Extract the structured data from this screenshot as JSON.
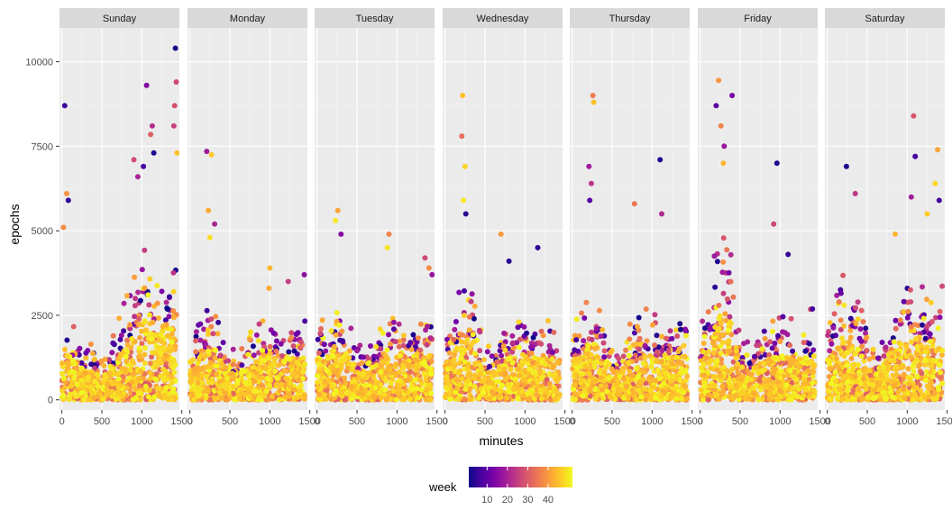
{
  "chart_data": {
    "type": "scatter",
    "facet_by": "day",
    "panels": [
      {
        "label": "Sunday",
        "profile": {
          "minutes": [
            0,
            60,
            120,
            200,
            300,
            400,
            500,
            600,
            700,
            800,
            900,
            1000,
            1100,
            1200,
            1300,
            1440
          ],
          "epochs_q": [
            2200,
            2600,
            2300,
            1900,
            1700,
            1500,
            1300,
            1500,
            2100,
            3000,
            3600,
            4300,
            4600,
            3500,
            4200,
            3600
          ]
        },
        "outliers": [
          [
            35,
            8700
          ],
          [
            60,
            6100
          ],
          [
            80,
            5900
          ],
          [
            20,
            5100
          ],
          [
            1060,
            9300
          ],
          [
            1130,
            8100
          ],
          [
            1110,
            7850
          ],
          [
            1420,
            10400
          ],
          [
            1430,
            9400
          ],
          [
            1410,
            8700
          ],
          [
            1400,
            8100
          ],
          [
            1440,
            7300
          ],
          [
            1150,
            7300
          ],
          [
            900,
            7100
          ],
          [
            950,
            6600
          ],
          [
            1020,
            6900
          ]
        ]
      },
      {
        "label": "Monday",
        "profile": {
          "minutes": [
            0,
            100,
            200,
            300,
            400,
            500,
            600,
            700,
            800,
            900,
            1000,
            1100,
            1200,
            1300,
            1440
          ],
          "epochs_q": [
            2200,
            2300,
            2800,
            2400,
            2000,
            1500,
            1400,
            1700,
            2000,
            2400,
            2500,
            2300,
            2300,
            2400,
            2500
          ]
        },
        "outliers": [
          [
            210,
            7350
          ],
          [
            270,
            7250
          ],
          [
            230,
            5600
          ],
          [
            310,
            5200
          ],
          [
            250,
            4800
          ],
          [
            1000,
            3900
          ],
          [
            1430,
            3700
          ],
          [
            1230,
            3500
          ],
          [
            990,
            3300
          ]
        ]
      },
      {
        "label": "Tuesday",
        "profile": {
          "minutes": [
            0,
            100,
            200,
            300,
            400,
            500,
            600,
            700,
            800,
            900,
            1000,
            1100,
            1200,
            1300,
            1440
          ],
          "epochs_q": [
            2200,
            2300,
            2600,
            2800,
            2300,
            1700,
            1500,
            1800,
            2200,
            2500,
            2500,
            2500,
            2300,
            2300,
            2400
          ]
        },
        "outliers": [
          [
            260,
            5600
          ],
          [
            230,
            5300
          ],
          [
            300,
            4900
          ],
          [
            900,
            4900
          ],
          [
            880,
            4500
          ],
          [
            1350,
            4200
          ],
          [
            1400,
            3900
          ],
          [
            1440,
            3700
          ]
        ]
      },
      {
        "label": "Wednesday",
        "profile": {
          "minutes": [
            0,
            100,
            200,
            300,
            400,
            500,
            600,
            700,
            800,
            900,
            1000,
            1100,
            1200,
            1300,
            1440
          ],
          "epochs_q": [
            2200,
            2500,
            3200,
            3400,
            2300,
            1600,
            1500,
            1900,
            2300,
            2400,
            2500,
            2400,
            2300,
            2300,
            2400
          ]
        },
        "outliers": [
          [
            220,
            9000
          ],
          [
            210,
            7800
          ],
          [
            250,
            6900
          ],
          [
            230,
            5900
          ],
          [
            260,
            5500
          ],
          [
            700,
            4900
          ],
          [
            1160,
            4500
          ],
          [
            800,
            4100
          ]
        ]
      },
      {
        "label": "Thursday",
        "profile": {
          "minutes": [
            0,
            100,
            200,
            300,
            400,
            500,
            600,
            700,
            800,
            900,
            1000,
            1100,
            1200,
            1300,
            1440
          ],
          "epochs_q": [
            2200,
            2300,
            3000,
            3300,
            2300,
            1700,
            1600,
            2000,
            2300,
            2400,
            2400,
            2300,
            2300,
            2300,
            2400
          ]
        },
        "outliers": [
          [
            260,
            9000
          ],
          [
            270,
            8800
          ],
          [
            210,
            6900
          ],
          [
            240,
            6400
          ],
          [
            220,
            5900
          ],
          [
            780,
            5800
          ],
          [
            1100,
            7100
          ],
          [
            1120,
            5500
          ]
        ]
      },
      {
        "label": "Friday",
        "profile": {
          "minutes": [
            0,
            100,
            200,
            300,
            400,
            500,
            600,
            700,
            800,
            900,
            1000,
            1100,
            1200,
            1300,
            1440
          ],
          "epochs_q": [
            2200,
            2600,
            4200,
            5000,
            4000,
            2000,
            1600,
            1900,
            2200,
            2400,
            2400,
            2300,
            2300,
            2300,
            2400
          ]
        },
        "outliers": [
          [
            230,
            9450
          ],
          [
            400,
            9000
          ],
          [
            300,
            7500
          ],
          [
            260,
            8100
          ],
          [
            200,
            8700
          ],
          [
            960,
            7000
          ],
          [
            920,
            5200
          ],
          [
            290,
            7000
          ],
          [
            1100,
            4300
          ]
        ]
      },
      {
        "label": "Saturday",
        "profile": {
          "minutes": [
            0,
            100,
            200,
            300,
            400,
            500,
            600,
            700,
            800,
            900,
            1000,
            1100,
            1200,
            1300,
            1440
          ],
          "epochs_q": [
            2200,
            2800,
            3800,
            3500,
            2700,
            1800,
            1500,
            2000,
            2600,
            3000,
            3300,
            3500,
            3300,
            3200,
            3100
          ]
        },
        "outliers": [
          [
            1080,
            8400
          ],
          [
            1380,
            7400
          ],
          [
            240,
            6900
          ],
          [
            1100,
            7200
          ],
          [
            1350,
            6400
          ],
          [
            1250,
            5500
          ],
          [
            350,
            6100
          ],
          [
            1050,
            6000
          ],
          [
            1400,
            5900
          ],
          [
            850,
            4900
          ]
        ]
      }
    ],
    "x": {
      "label": "minutes",
      "range": [
        -30,
        1470
      ],
      "ticks": [
        0,
        500,
        1000,
        1500
      ]
    },
    "y": {
      "label": "epochs",
      "range": [
        -300,
        11000
      ],
      "ticks": [
        0,
        2500,
        5000,
        7500,
        10000
      ],
      "tick_labels": [
        "0",
        "2500",
        "5000",
        "7500",
        "10000"
      ]
    },
    "color": {
      "variable": "week",
      "scale": "plasma",
      "range": [
        1,
        52
      ],
      "legend_ticks": [
        10,
        20,
        30,
        40
      ],
      "legend_placement": "bottom",
      "stops": [
        "#0d0887",
        "#46039f",
        "#7201a8",
        "#9c179e",
        "#bd3786",
        "#d8576b",
        "#ed7953",
        "#fb9f3a",
        "#fdca26",
        "#f0f921"
      ]
    },
    "grid": true,
    "panel_background": "#ebebeb",
    "strip_background": "#d9d9d9"
  }
}
